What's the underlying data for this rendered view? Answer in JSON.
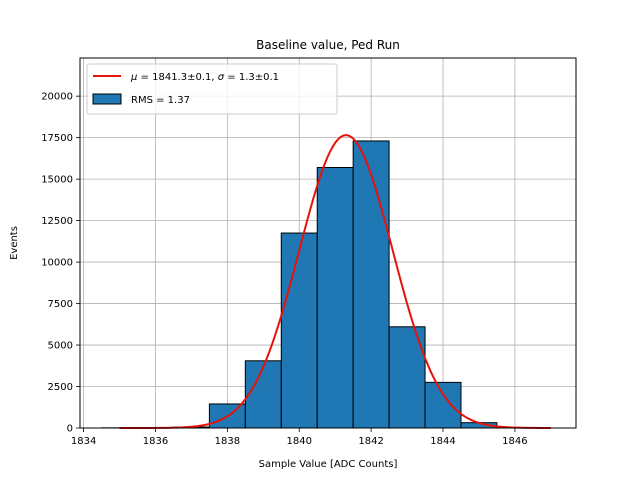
{
  "chart_data": {
    "type": "bar",
    "title": "Baseline value, Ped Run",
    "xlabel": "Sample Value [ADC Counts]",
    "ylabel": "Events",
    "xlim": [
      1833.9,
      1847.7
    ],
    "ylim": [
      0,
      22300
    ],
    "x_ticks": [
      1834,
      1836,
      1838,
      1840,
      1842,
      1844,
      1846
    ],
    "y_ticks": [
      0,
      2500,
      5000,
      7500,
      10000,
      12500,
      15000,
      17500,
      20000
    ],
    "grid": true,
    "legend_placement": "top-left",
    "histogram": {
      "name": "RMS = 1.37",
      "color": "#1f77b4",
      "edgecolor": "#000000",
      "bin_edges": [
        1834.5,
        1835.5,
        1836.5,
        1837.5,
        1838.5,
        1839.5,
        1840.5,
        1841.5,
        1842.5,
        1843.5,
        1844.5,
        1845.5
      ],
      "counts": [
        10,
        20,
        60,
        1450,
        4050,
        11750,
        15700,
        17300,
        6100,
        2750,
        320
      ]
    },
    "fit": {
      "type": "gaussian",
      "label_main": "μ",
      "label_mid": " = 1841.3±0.1, ",
      "label_sigma": "σ",
      "label_end": " = 1.3±0.1",
      "color": "#e8120c",
      "mu": 1841.3,
      "sigma": 1.3,
      "amplitude": 17650,
      "x_range": [
        1835,
        1847
      ]
    }
  }
}
